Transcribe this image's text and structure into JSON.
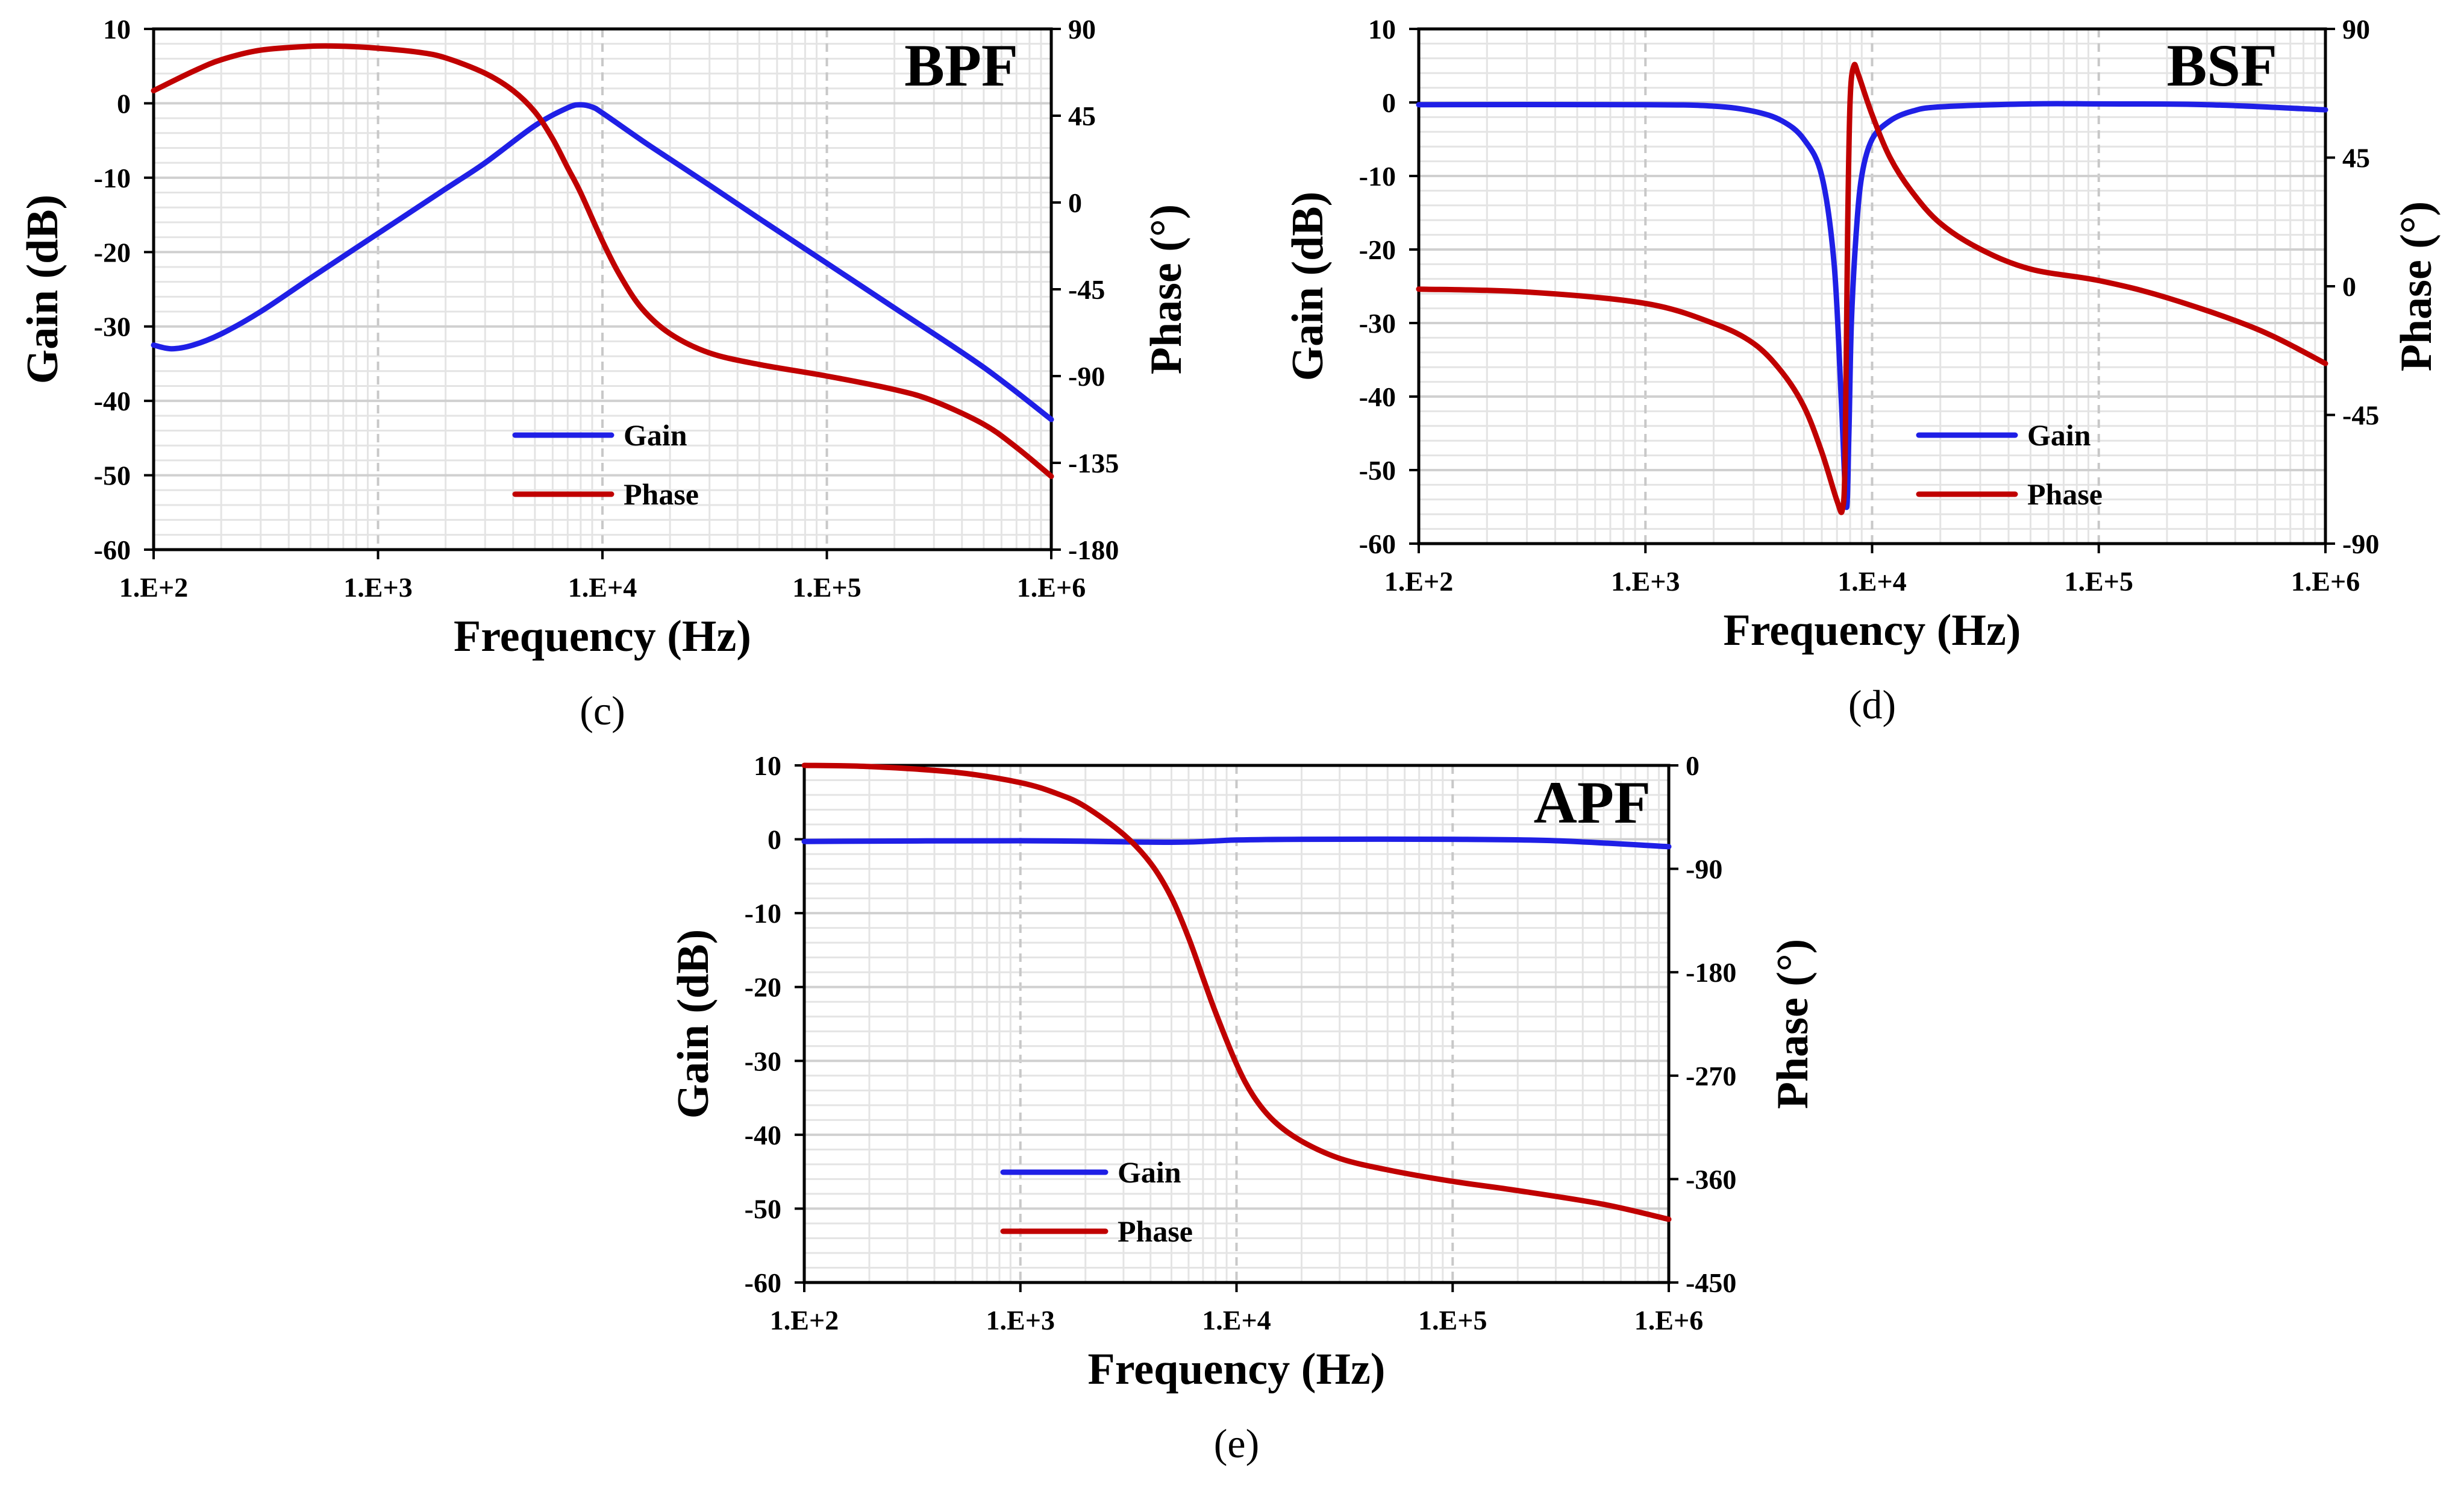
{
  "chart_data": [
    {
      "type": "line",
      "panel": "c",
      "caption": "(c)",
      "title": "BPF",
      "xlabel": "Frequency (Hz)",
      "ylabel": "Gain (dB)",
      "y2label": "Phase (°)",
      "xscale": "log",
      "xlim": [
        100,
        1000000
      ],
      "ylim": [
        -60,
        10
      ],
      "y2lim": [
        -180,
        90
      ],
      "xticks": [
        100,
        1000,
        10000,
        100000,
        1000000
      ],
      "xtick_labels": [
        "1.E+2",
        "1.E+3",
        "1.E+4",
        "1.E+5",
        "1.E+6"
      ],
      "yticks": [
        10,
        0,
        -10,
        -20,
        -30,
        -40,
        -50,
        -60
      ],
      "ytick_labels": [
        "10",
        "0",
        "-10",
        "-20",
        "-30",
        "-40",
        "-50",
        "-60"
      ],
      "y2ticks": [
        90,
        45,
        0,
        -45,
        -90,
        -135,
        -180
      ],
      "y2tick_labels": [
        "90",
        "45",
        "0",
        "-45",
        "-90",
        "-135",
        "-180"
      ],
      "grid": true,
      "legend": [
        "Gain",
        "Phase"
      ],
      "legend_position": "bottom-center",
      "series": [
        {
          "name": "Gain",
          "axis": "left",
          "color": "#1f1fe6",
          "x": [
            100,
            120,
            150,
            200,
            300,
            500,
            1000,
            2000,
            3000,
            5000,
            7000,
            8000,
            9000,
            10000,
            15000,
            20000,
            30000,
            50000,
            100000,
            200000,
            500000,
            1000000
          ],
          "y": [
            -32.5,
            -33,
            -32.5,
            -31,
            -28,
            -23.5,
            -17.5,
            -11.5,
            -8,
            -3,
            -0.6,
            -0.2,
            -0.5,
            -1.3,
            -5,
            -7.5,
            -11,
            -15.5,
            -21.5,
            -27.5,
            -35.5,
            -42.5
          ]
        },
        {
          "name": "Phase",
          "axis": "right",
          "color": "#c00000",
          "x": [
            100,
            150,
            200,
            300,
            500,
            700,
            1000,
            1500,
            2000,
            3000,
            4000,
            5000,
            6000,
            7000,
            8000,
            10000,
            12000,
            15000,
            20000,
            30000,
            50000,
            100000,
            200000,
            300000,
            500000,
            700000,
            1000000
          ],
          "y": [
            58,
            68,
            74,
            79,
            81,
            81,
            80,
            78,
            75,
            67,
            58,
            47,
            33,
            18,
            5,
            -20,
            -38,
            -55,
            -68,
            -78,
            -84,
            -90,
            -97,
            -103,
            -115,
            -127,
            -142
          ]
        }
      ]
    },
    {
      "type": "line",
      "panel": "d",
      "caption": "(d)",
      "title": "BSF",
      "xlabel": "Frequency (Hz)",
      "ylabel": "Gain (dB)",
      "y2label": "Phase (°)",
      "xscale": "log",
      "xlim": [
        100,
        1000000
      ],
      "ylim": [
        -60,
        10
      ],
      "y2lim": [
        -90,
        90
      ],
      "xticks": [
        100,
        1000,
        10000,
        100000,
        1000000
      ],
      "xtick_labels": [
        "1.E+2",
        "1.E+3",
        "1.E+4",
        "1.E+5",
        "1.E+6"
      ],
      "yticks": [
        10,
        0,
        -10,
        -20,
        -30,
        -40,
        -50,
        -60
      ],
      "ytick_labels": [
        "10",
        "0",
        "-10",
        "-20",
        "-30",
        "-40",
        "-50",
        "-60"
      ],
      "y2ticks": [
        90,
        45,
        0,
        -45,
        -90
      ],
      "y2tick_labels": [
        "90",
        "45",
        "0",
        "-45",
        "-90"
      ],
      "grid": true,
      "legend": [
        "Gain",
        "Phase"
      ],
      "legend_position": "bottom-right",
      "series": [
        {
          "name": "Gain",
          "axis": "left",
          "color": "#1f1fe6",
          "x": [
            100,
            1000,
            2000,
            3000,
            4000,
            5000,
            6000,
            6800,
            7300,
            7700,
            7900,
            8100,
            8500,
            9000,
            10000,
            12000,
            15000,
            20000,
            50000,
            100000,
            300000,
            1000000
          ],
          "y": [
            -0.3,
            -0.3,
            -0.5,
            -1.2,
            -2.5,
            -5,
            -10,
            -22,
            -40,
            -55,
            -45,
            -30,
            -18,
            -10,
            -5,
            -2.5,
            -1.2,
            -0.6,
            -0.2,
            -0.2,
            -0.3,
            -1
          ]
        },
        {
          "name": "Phase",
          "axis": "right",
          "color": "#c00000",
          "x": [
            100,
            300,
            1000,
            2000,
            3000,
            4000,
            5000,
            6000,
            7000,
            7400,
            7600,
            7800,
            8000,
            8300,
            8700,
            10000,
            12000,
            15000,
            20000,
            30000,
            50000,
            100000,
            200000,
            500000,
            1000000
          ],
          "y": [
            -1,
            -2,
            -6,
            -13,
            -20,
            -30,
            -42,
            -58,
            -75,
            -78,
            -60,
            20,
            65,
            77,
            74,
            60,
            45,
            33,
            22,
            13,
            6,
            2,
            -4,
            -15,
            -27
          ]
        }
      ]
    },
    {
      "type": "line",
      "panel": "e",
      "caption": "(e)",
      "title": "APF",
      "xlabel": "Frequency (Hz)",
      "ylabel": "Gain (dB)",
      "y2label": "Phase (°)",
      "xscale": "log",
      "xlim": [
        100,
        1000000
      ],
      "ylim": [
        -60,
        10
      ],
      "y2lim": [
        -450,
        0
      ],
      "xticks": [
        100,
        1000,
        10000,
        100000,
        1000000
      ],
      "xtick_labels": [
        "1.E+2",
        "1.E+3",
        "1.E+4",
        "1.E+5",
        "1.E+6"
      ],
      "yticks": [
        10,
        0,
        -10,
        -20,
        -30,
        -40,
        -50,
        -60
      ],
      "ytick_labels": [
        "10",
        "0",
        "-10",
        "-20",
        "-30",
        "-40",
        "-50",
        "-60"
      ],
      "y2ticks": [
        0,
        -90,
        -180,
        -270,
        -360,
        -450
      ],
      "y2tick_labels": [
        "0",
        "-90",
        "-180",
        "-270",
        "-360",
        "-450"
      ],
      "grid": true,
      "legend": [
        "Gain",
        "Phase"
      ],
      "legend_position": "bottom-left",
      "series": [
        {
          "name": "Gain",
          "axis": "left",
          "color": "#1f1fe6",
          "x": [
            100,
            1000,
            5000,
            10000,
            20000,
            100000,
            300000,
            1000000
          ],
          "y": [
            -0.3,
            -0.2,
            -0.4,
            -0.1,
            0,
            0,
            -0.2,
            -1
          ]
        },
        {
          "name": "Phase",
          "axis": "right",
          "color": "#c00000",
          "x": [
            100,
            200,
            500,
            1000,
            1500,
            2000,
            3000,
            4000,
            5000,
            6000,
            7000,
            8000,
            10000,
            12000,
            15000,
            20000,
            30000,
            50000,
            100000,
            200000,
            500000,
            1000000
          ],
          "y": [
            0,
            -1,
            -6,
            -15,
            -25,
            -36,
            -60,
            -85,
            -115,
            -150,
            -185,
            -215,
            -260,
            -288,
            -310,
            -327,
            -342,
            -352,
            -362,
            -370,
            -382,
            -395
          ]
        }
      ]
    }
  ]
}
